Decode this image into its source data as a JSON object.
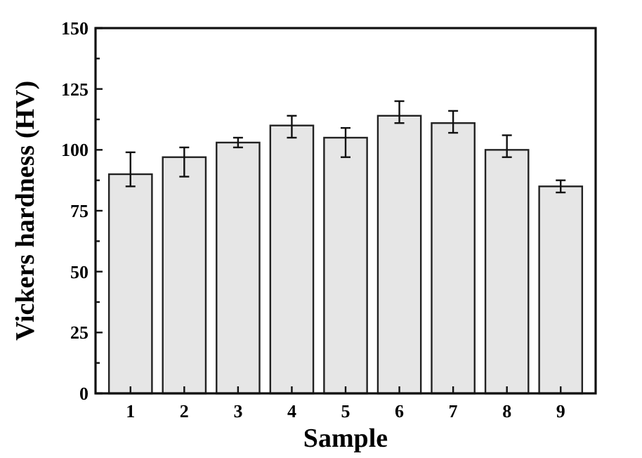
{
  "chart_data": {
    "type": "bar",
    "xlabel": "Sample",
    "ylabel": "Vickers hardness (HV)",
    "categories": [
      "1",
      "2",
      "3",
      "4",
      "5",
      "6",
      "7",
      "8",
      "9"
    ],
    "values": [
      90,
      97,
      103,
      110,
      105,
      114,
      111,
      100,
      85
    ],
    "errors": [
      [
        85,
        99
      ],
      [
        89,
        101
      ],
      [
        101,
        105
      ],
      [
        105,
        114
      ],
      [
        97,
        109
      ],
      [
        111,
        120
      ],
      [
        107,
        116
      ],
      [
        97,
        106
      ],
      [
        82.5,
        87.5
      ]
    ],
    "color": "#e6e6e6",
    "ylim": [
      0,
      150
    ],
    "yticks": [
      0,
      {
        "value": 12.5,
        "label": null
      },
      25,
      {
        "value": 37.5,
        "label": null
      },
      50,
      {
        "value": 62.5,
        "label": null
      },
      75,
      {
        "value": 87.5,
        "label": null
      },
      100,
      {
        "value": 112.5,
        "label": null
      },
      125,
      {
        "value": 137.5,
        "label": null
      },
      150
    ],
    "grid": false
  }
}
